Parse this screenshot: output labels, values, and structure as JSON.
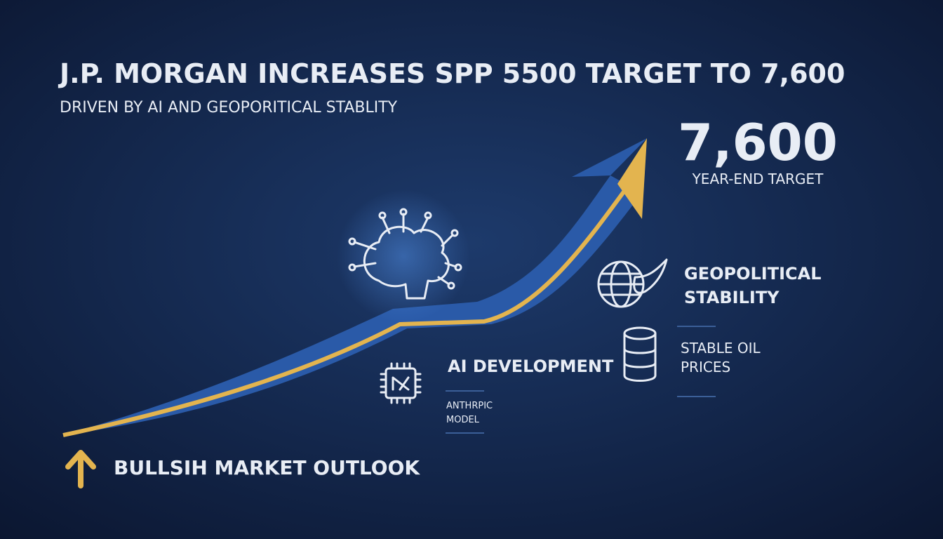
{
  "header": {
    "title": "J.P. MORGAN INCREASES SPP 5500 TARGET TO 7,600",
    "subtitle": "DRIVEN BY AI AND GEOPORITICAL STABLITY"
  },
  "target": {
    "value": "7,600",
    "label": "YEAR-END TARGET"
  },
  "factors": [
    {
      "lines": [
        "GEOPOLITICAL",
        "STABILITY"
      ]
    },
    {
      "lines": [
        "STABLE OIL",
        "PRICES"
      ]
    },
    {
      "lines": [
        "AI DEVELOPMENT"
      ],
      "note": [
        "ANTHRPIC",
        "MODEL"
      ]
    }
  ],
  "footer": {
    "text": "BULLSIH MARKET OUTLOOK"
  }
}
